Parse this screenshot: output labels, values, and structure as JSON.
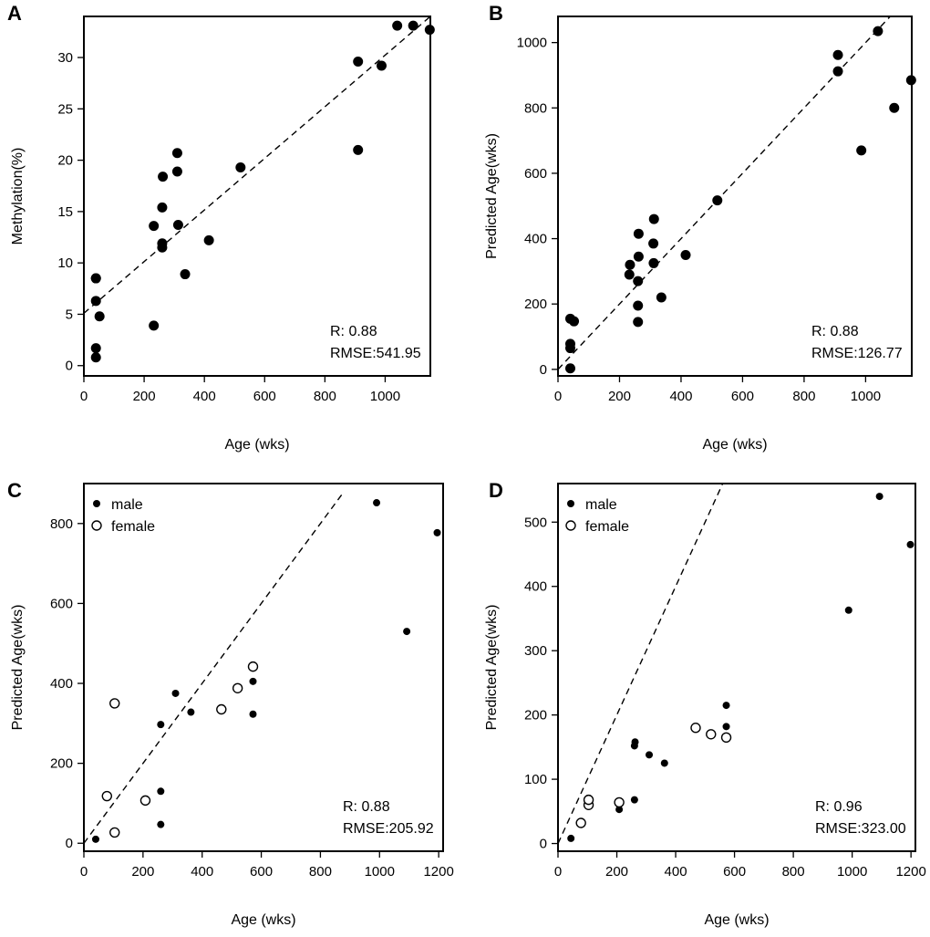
{
  "chart_data": [
    {
      "panel": "A",
      "type": "scatter",
      "xlabel": "Age (wks)",
      "ylabel": "Methylation(%)",
      "xlim": [
        0,
        1150
      ],
      "ylim": [
        -1,
        34
      ],
      "xticks": [
        0,
        200,
        400,
        600,
        800,
        1000
      ],
      "yticks": [
        0,
        5,
        10,
        15,
        20,
        25,
        30
      ],
      "fit_line": {
        "x1": 0,
        "y1": 5.1,
        "x2": 1150,
        "y2": 34
      },
      "annotations": [
        "R: 0.88",
        "RMSE:541.95"
      ],
      "series": [
        {
          "name": "all",
          "marker": "filled",
          "x": [
            40,
            40,
            40,
            40,
            40,
            52,
            232,
            232,
            260,
            260,
            260,
            262,
            310,
            310,
            313,
            336,
            415,
            520,
            910,
            910,
            988,
            1040,
            1093,
            1148
          ],
          "y": [
            0.8,
            1.7,
            6.3,
            8.5,
            8.5,
            4.8,
            3.9,
            13.6,
            11.5,
            11.9,
            15.4,
            18.4,
            18.9,
            20.7,
            13.7,
            8.9,
            12.2,
            19.3,
            21.0,
            29.6,
            29.2,
            33.1,
            33.1,
            32.7
          ]
        }
      ]
    },
    {
      "panel": "B",
      "type": "scatter",
      "xlabel": "Age (wks)",
      "ylabel": "Predicted Age(wks)",
      "xlim": [
        0,
        1150
      ],
      "ylim": [
        -20,
        1080
      ],
      "xticks": [
        0,
        200,
        400,
        600,
        800,
        1000
      ],
      "yticks": [
        0,
        200,
        400,
        600,
        800,
        1000
      ],
      "fit_line": {
        "x1": 0,
        "y1": 0,
        "x2": 1080,
        "y2": 1080
      },
      "annotations": [
        "R: 0.88",
        "RMSE:126.77"
      ],
      "series": [
        {
          "name": "all",
          "marker": "filled",
          "x": [
            40,
            40,
            40,
            40,
            52,
            232,
            234,
            260,
            260,
            260,
            262,
            262,
            310,
            311,
            312,
            336,
            415,
            518,
            910,
            910,
            986,
            1040,
            1093,
            1148
          ],
          "y": [
            3,
            65,
            78,
            155,
            147,
            290,
            320,
            145,
            195,
            270,
            345,
            415,
            385,
            325,
            460,
            220,
            350,
            517,
            912,
            962,
            670,
            1035,
            800,
            885
          ]
        }
      ]
    },
    {
      "panel": "C",
      "type": "scatter",
      "xlabel": "Age (wks)",
      "ylabel": "Predicted Age(wks)",
      "xlim": [
        0,
        1215
      ],
      "ylim": [
        -20,
        900
      ],
      "xticks": [
        0,
        200,
        400,
        600,
        800,
        1000,
        1200
      ],
      "yticks": [
        0,
        200,
        400,
        600,
        800
      ],
      "fit_line": {
        "x1": 0,
        "y1": 0,
        "x2": 880,
        "y2": 880
      },
      "legend": {
        "position": "top-left",
        "entries": [
          "male",
          "female"
        ]
      },
      "annotations": [
        "R: 0.88",
        "RMSE:205.92"
      ],
      "series": [
        {
          "name": "male",
          "marker": "filled",
          "x": [
            40,
            260,
            260,
            260,
            310,
            362,
            572,
            572,
            990,
            1092,
            1195
          ],
          "y": [
            10,
            47,
            130,
            297,
            375,
            328,
            323,
            405,
            852,
            530,
            777
          ]
        },
        {
          "name": "female",
          "marker": "open",
          "x": [
            78,
            104,
            104,
            208,
            465,
            520,
            572
          ],
          "y": [
            118,
            27,
            350,
            107,
            335,
            388,
            442
          ]
        }
      ]
    },
    {
      "panel": "D",
      "type": "scatter",
      "xlabel": "Age (wks)",
      "ylabel": "Predicted Age(wks)",
      "xlim": [
        0,
        1215
      ],
      "ylim": [
        -12,
        560
      ],
      "xticks": [
        0,
        200,
        400,
        600,
        800,
        1000,
        1200
      ],
      "yticks": [
        0,
        100,
        200,
        300,
        400,
        500
      ],
      "fit_line": {
        "x1": 0,
        "y1": 0,
        "x2": 560,
        "y2": 560
      },
      "legend": {
        "position": "top-left",
        "entries": [
          "male",
          "female"
        ]
      },
      "annotations": [
        "R: 0.96",
        "RMSE:323.00"
      ],
      "series": [
        {
          "name": "male",
          "marker": "filled",
          "x": [
            44,
            208,
            260,
            260,
            262,
            310,
            362,
            572,
            572,
            988,
            1093,
            1198
          ],
          "y": [
            8,
            53,
            68,
            152,
            158,
            138,
            125,
            182,
            215,
            363,
            540,
            465
          ]
        },
        {
          "name": "female",
          "marker": "open",
          "x": [
            78,
            104,
            104,
            208,
            468,
            520,
            572
          ],
          "y": [
            32,
            60,
            68,
            64,
            180,
            170,
            165
          ]
        }
      ]
    }
  ]
}
